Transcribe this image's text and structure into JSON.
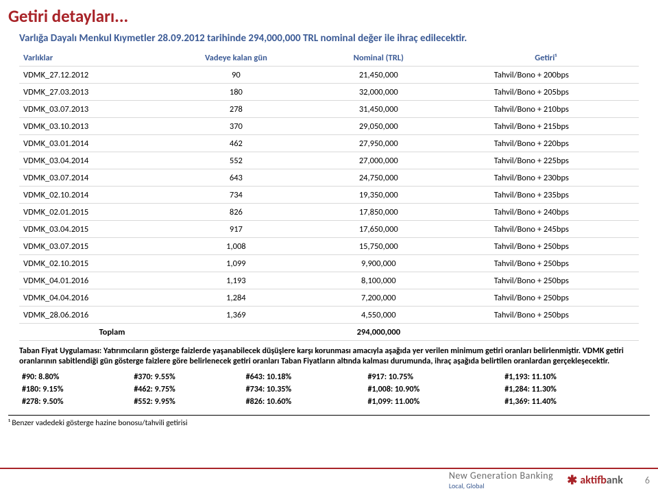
{
  "title": "Getiri detayları...",
  "intro": "Varlığa Dayalı Menkul Kıymetler 28.09.2012 tarihinde 294,000,000 TRL nominal değer ile ihraç edilecektir.",
  "table": {
    "headers": [
      "Varlıklar",
      "Vadeye kalan gün",
      "Nominal (TRL)",
      "Getiri¹"
    ],
    "rows": [
      [
        "VDMK_27.12.2012",
        "90",
        "21,450,000",
        "Tahvil/Bono + 200bps"
      ],
      [
        "VDMK_27.03.2013",
        "180",
        "32,000,000",
        "Tahvil/Bono + 205bps"
      ],
      [
        "VDMK_03.07.2013",
        "278",
        "31,450,000",
        "Tahvil/Bono + 210bps"
      ],
      [
        "VDMK_03.10.2013",
        "370",
        "29,050,000",
        "Tahvil/Bono + 215bps"
      ],
      [
        "VDMK_03.01.2014",
        "462",
        "27,950,000",
        "Tahvil/Bono + 220bps"
      ],
      [
        "VDMK_03.04.2014",
        "552",
        "27,000,000",
        "Tahvil/Bono + 225bps"
      ],
      [
        "VDMK_03.07.2014",
        "643",
        "24,750,000",
        "Tahvil/Bono + 230bps"
      ],
      [
        "VDMK_02.10.2014",
        "734",
        "19,350,000",
        "Tahvil/Bono + 235bps"
      ],
      [
        "VDMK_02.01.2015",
        "826",
        "17,850,000",
        "Tahvil/Bono + 240bps"
      ],
      [
        "VDMK_03.04.2015",
        "917",
        "17,650,000",
        "Tahvil/Bono + 245bps"
      ],
      [
        "VDMK_03.07.2015",
        "1,008",
        "15,750,000",
        "Tahvil/Bono + 250bps"
      ],
      [
        "VDMK_02.10.2015",
        "1,099",
        "9,900,000",
        "Tahvil/Bono + 250bps"
      ],
      [
        "VDMK_04.01.2016",
        "1,193",
        "8,100,000",
        "Tahvil/Bono + 250bps"
      ],
      [
        "VDMK_04.04.2016",
        "1,284",
        "7,200,000",
        "Tahvil/Bono + 250bps"
      ],
      [
        "VDMK_28.06.2016",
        "1,369",
        "4,550,000",
        "Tahvil/Bono + 250bps"
      ]
    ],
    "total": {
      "label": "Toplam",
      "value": "294,000,000"
    }
  },
  "description": "Taban Fiyat Uygulaması: Yatırımcıların gösterge faizlerde yaşanabilecek düşüşlere karşı korunması amacıyla aşağıda yer verilen minimum getiri oranları belirlenmiştir. VDMK getiri oranlarının sabitlendiği gün gösterge faizlere göre belirlenecek getiri oranları Taban Fiyatların altında kalması durumunda, ihraç aşağıda belirtilen oranlardan gerçekleşecektir.",
  "rates": [
    [
      "#90: 8.80%",
      "#370: 9.55%",
      "#643: 10.18%",
      "#917: 10.75%",
      "#1,193: 11.10%"
    ],
    [
      "#180: 9.15%",
      "#462: 9.75%",
      "#734: 10.35%",
      "#1,008: 10.90%",
      "#1,284: 11.30%"
    ],
    [
      "#278: 9.50%",
      "#552: 9.95%",
      "#826: 10.60%",
      "#1,099: 11.00%",
      "#1,369: 11.40%"
    ]
  ],
  "footnote": "¹ Benzer vadedeki gösterge hazine bonosu/tahvili getirisi",
  "footer": {
    "ngb_main": "New Generation Banking",
    "ngb_sub": "Local, Global",
    "bank": "aktifbank",
    "page": "6"
  },
  "colors": {
    "accent": "#a82328",
    "header": "#3c5b96",
    "border": "#d9d9d9"
  }
}
